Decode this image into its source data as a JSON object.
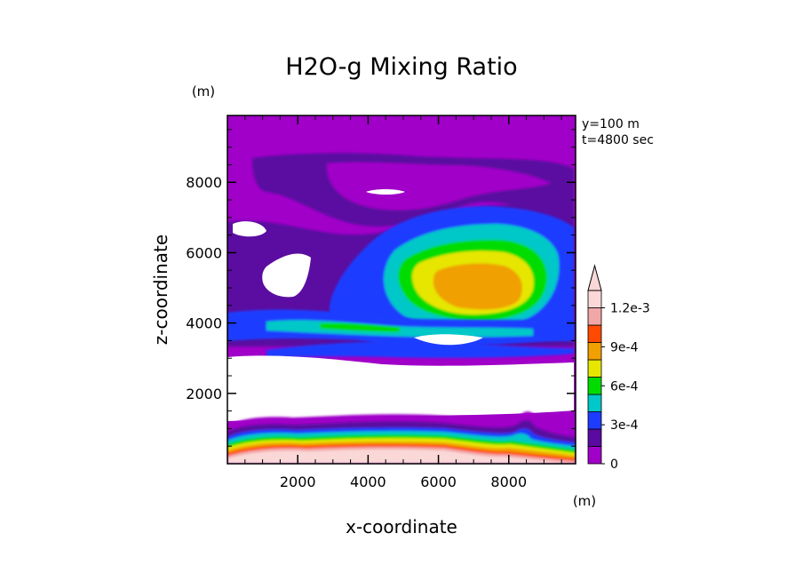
{
  "chart_data": {
    "type": "heatmap",
    "title": "H2O-g Mixing Ratio",
    "xlabel": "x-coordinate",
    "ylabel": "z-coordinate",
    "x_unit": "(m)",
    "y_unit": "(m)",
    "annotations": [
      "y=100 m",
      "t=4800 sec"
    ],
    "xlim": [
      0,
      9900
    ],
    "ylim": [
      0,
      9900
    ],
    "x_ticks": [
      2000,
      4000,
      6000,
      8000
    ],
    "y_ticks": [
      2000,
      4000,
      6000,
      8000
    ],
    "grid": false,
    "legend_position": "right",
    "colorbar": {
      "levels": [
        0,
        0.00015,
        0.0003,
        0.00045,
        0.0006,
        0.00075,
        0.0009,
        0.00105,
        0.0012
      ],
      "colors": [
        "#a000c8",
        "#5a0aa0",
        "#1e3cff",
        "#00c8c8",
        "#00dc00",
        "#e6e600",
        "#f0a000",
        "#ff4a00",
        "#f2a7a7",
        "#fbd8d8"
      ],
      "tick_labels": [
        "0",
        "3e-4",
        "6e-4",
        "9e-4",
        "1.2e-3"
      ],
      "tick_values": [
        0,
        0.0003,
        0.0006,
        0.0009,
        0.0012
      ],
      "extend": "max"
    },
    "regions": [
      {
        "description": "bottom moist layer",
        "z_range_m": [
          0,
          1500
        ],
        "max_value": 0.0013
      },
      {
        "description": "dry band",
        "z_range_m": [
          1500,
          3000
        ],
        "value": 0
      },
      {
        "description": "moist cloud core",
        "x_center_m": 6000,
        "z_center_m": 5000,
        "max_value": 0.00075
      },
      {
        "description": "upper layer",
        "z_range_m": [
          6000,
          9900
        ],
        "max_value": 0.00015
      }
    ]
  }
}
